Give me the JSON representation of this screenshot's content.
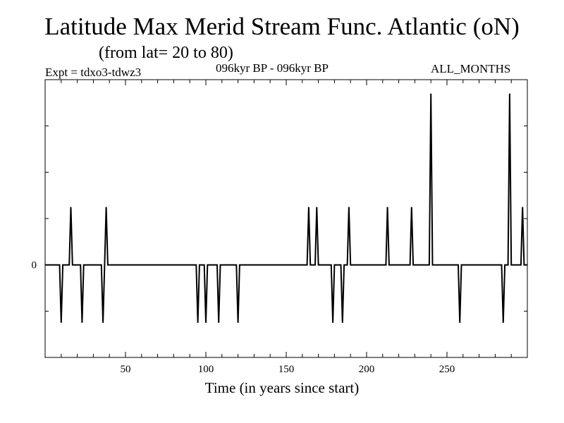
{
  "chart_data": {
    "type": "line",
    "title": "Latitude Max Merid Stream Func. Atlantic (oN)",
    "subtitle": "(from lat= 20 to 80)",
    "expt": "Expt = tdxo3-tdwz3",
    "period": "096kyr BP - 096kyr BP",
    "months": "ALL_MONTHS",
    "xlabel": "Time (in years since start)",
    "ylabel": "",
    "xlim": [
      0,
      300
    ],
    "ylim": [
      -2,
      4
    ],
    "x_ticks": [
      50,
      100,
      150,
      200,
      250
    ],
    "y_tick_labels": [
      {
        "value": 0,
        "label": "0"
      }
    ],
    "grid": false,
    "series": [
      {
        "line_color": "#000000",
        "spikes": [
          {
            "x": 10,
            "y": -1.25
          },
          {
            "x": 16,
            "y": 1.25
          },
          {
            "x": 23,
            "y": -1.25
          },
          {
            "x": 36,
            "y": -1.25
          },
          {
            "x": 38,
            "y": 1.25
          },
          {
            "x": 95,
            "y": -1.25
          },
          {
            "x": 100,
            "y": -1.25
          },
          {
            "x": 108,
            "y": -1.25
          },
          {
            "x": 120,
            "y": -1.25
          },
          {
            "x": 164,
            "y": 1.25
          },
          {
            "x": 169,
            "y": 1.25
          },
          {
            "x": 179,
            "y": -1.25
          },
          {
            "x": 185,
            "y": -1.25
          },
          {
            "x": 189,
            "y": 1.25
          },
          {
            "x": 213,
            "y": 1.25
          },
          {
            "x": 228,
            "y": 1.25
          },
          {
            "x": 240,
            "y": 3.7
          },
          {
            "x": 258,
            "y": -1.25
          },
          {
            "x": 285,
            "y": -1.25
          },
          {
            "x": 289,
            "y": 3.7
          },
          {
            "x": 297,
            "y": 1.25
          }
        ]
      }
    ]
  }
}
